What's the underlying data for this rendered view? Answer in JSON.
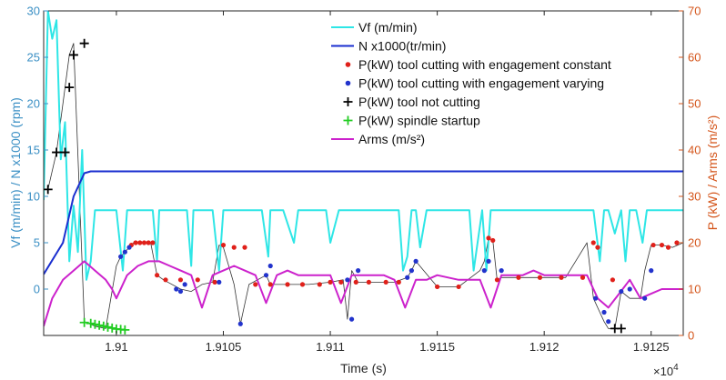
{
  "chart_data": {
    "type": "line",
    "xlabel": "Time (s)",
    "x_exponent_label": "×10",
    "x_exponent_power": "4",
    "x_ticks": [
      "1.91",
      "1.9105",
      "1.911",
      "1.9115",
      "1.912",
      "1.9125"
    ],
    "x_tick_values": [
      1.91,
      1.9105,
      1.911,
      1.9115,
      1.912,
      1.9125
    ],
    "xlim": [
      1.90966,
      1.91265
    ],
    "ylabel_left": "Vf (m/min) / N x1000 (rpm)",
    "ylim_left": [
      -5,
      30
    ],
    "yticks_left": [
      "0",
      "5",
      "10",
      "15",
      "20",
      "25",
      "30"
    ],
    "ytick_values_left": [
      0,
      5,
      10,
      15,
      20,
      25,
      30
    ],
    "ylabel_right": "P (kW) / Arms (m/s²)",
    "ylim_right": [
      0,
      70
    ],
    "yticks_right": [
      "0",
      "10",
      "20",
      "30",
      "40",
      "50",
      "60",
      "70"
    ],
    "ytick_values_right": [
      0,
      10,
      20,
      30,
      40,
      50,
      60,
      70
    ],
    "left_axis_color": "#3a8fc4",
    "right_axis_color": "#d4551b",
    "legend_position": "top-right",
    "grid": false,
    "series": [
      {
        "name": "Vf (m/min)",
        "axis": "left",
        "style": "line",
        "color": "#2ee6e6",
        "x": [
          1.90966,
          1.90968,
          1.9097,
          1.90972,
          1.90974,
          1.90976,
          1.90978,
          1.9098,
          1.90982,
          1.90984,
          1.90986,
          1.90988,
          1.9099,
          1.90992,
          1.90995,
          1.91,
          1.91003,
          1.91005,
          1.91007,
          1.91011,
          1.91017,
          1.91019,
          1.9102,
          1.91025,
          1.91033,
          1.91035,
          1.91036,
          1.9104,
          1.91045,
          1.91048,
          1.9105,
          1.91058,
          1.91068,
          1.91071,
          1.91072,
          1.91074,
          1.91078,
          1.91083,
          1.91085,
          1.91086,
          1.9109,
          1.91098,
          1.911,
          1.91104,
          1.91106,
          1.91108,
          1.91111,
          1.91132,
          1.91134,
          1.91136,
          1.91138,
          1.9114,
          1.91142,
          1.91145,
          1.91165,
          1.91167,
          1.91171,
          1.91173,
          1.91175,
          1.9118,
          1.91223,
          1.91226,
          1.91228,
          1.9123,
          1.91233,
          1.91236,
          1.91238,
          1.9124,
          1.91243,
          1.91246,
          1.91248,
          1.91252,
          1.91265
        ],
        "y": [
          9.6,
          30,
          27,
          29,
          14,
          18,
          3,
          9,
          4,
          15,
          1,
          3,
          8.5,
          8.5,
          8.5,
          8.5,
          2,
          8.5,
          8.5,
          8.5,
          8.5,
          3,
          8.5,
          8.5,
          8.5,
          2.5,
          8.5,
          8.5,
          8.5,
          2,
          8.5,
          8.5,
          8.5,
          3.5,
          8.5,
          8.5,
          8.5,
          5,
          8.5,
          8.5,
          8.5,
          8.5,
          5,
          8.5,
          8.5,
          8.5,
          8.5,
          8.5,
          2,
          3.5,
          8.5,
          8.5,
          4.5,
          8.5,
          8.5,
          2,
          8.5,
          2,
          8.5,
          8.5,
          8.5,
          3,
          8.5,
          8.5,
          6,
          8.5,
          3,
          8.5,
          8.5,
          5,
          8.5,
          8.5,
          8.5
        ]
      },
      {
        "name": "N x1000(tr/min)",
        "axis": "left",
        "style": "line",
        "color": "#1a2ecf",
        "x": [
          1.90966,
          1.90975,
          1.9098,
          1.90985,
          1.90988,
          1.91265
        ],
        "y": [
          1.6,
          5,
          10,
          12.5,
          12.7,
          12.7
        ]
      },
      {
        "name": "P(kW) tool cutting with engagement constant",
        "axis": "right",
        "style": "dots",
        "color": "#e0201a",
        "x": [
          1.91007,
          1.91009,
          1.91011,
          1.91013,
          1.91015,
          1.91017,
          1.91019,
          1.91023,
          1.9103,
          1.91038,
          1.91046,
          1.9105,
          1.91055,
          1.9106,
          1.91065,
          1.91072,
          1.9108,
          1.91087,
          1.91095,
          1.911,
          1.91105,
          1.91112,
          1.91118,
          1.91126,
          1.91132,
          1.9115,
          1.9116,
          1.91174,
          1.91176,
          1.91178,
          1.91188,
          1.91198,
          1.91208,
          1.91218,
          1.91223,
          1.91225,
          1.91232,
          1.91251,
          1.91255,
          1.91258,
          1.91262
        ],
        "y": [
          19.5,
          20,
          20,
          20,
          20,
          20,
          13,
          12,
          12,
          12,
          11.5,
          19.5,
          19,
          19,
          11,
          11,
          11,
          11,
          11,
          11.5,
          11.5,
          11.5,
          11.5,
          11.5,
          11.5,
          10.5,
          10.5,
          21,
          20.5,
          12,
          12.5,
          12.5,
          12.5,
          12.5,
          20,
          19,
          12,
          19.5,
          19.5,
          19,
          20
        ]
      },
      {
        "name": "P(kW) tool cutting with engagement varying",
        "axis": "right",
        "style": "dots",
        "color": "#2233cc",
        "x": [
          1.91002,
          1.91004,
          1.91006,
          1.91028,
          1.9103,
          1.91032,
          1.91048,
          1.91058,
          1.9107,
          1.91072,
          1.91108,
          1.9111,
          1.91113,
          1.91136,
          1.91138,
          1.9114,
          1.91172,
          1.91174,
          1.9118,
          1.91224,
          1.91228,
          1.9123,
          1.91236,
          1.9124,
          1.91247,
          1.9125
        ],
        "y": [
          17,
          18,
          19,
          10,
          9.5,
          11,
          11.5,
          2.5,
          13,
          15,
          12,
          3.5,
          14,
          12.5,
          14,
          16,
          14,
          16,
          14,
          8,
          5,
          3,
          9.5,
          10,
          8,
          14
        ]
      },
      {
        "name": "P(kW) tool not cutting",
        "axis": "right",
        "style": "plus",
        "color": "#000000",
        "x": [
          1.90968,
          1.90972,
          1.90976,
          1.90978,
          1.9098,
          1.90985,
          1.91233,
          1.91236
        ],
        "y": [
          31.5,
          39.5,
          39.5,
          53.5,
          60.5,
          63,
          1.5,
          1.5
        ]
      },
      {
        "name": "P(kW) spindle startup",
        "axis": "right",
        "style": "plus",
        "color": "#22cc22",
        "x": [
          1.90985,
          1.90988,
          1.9099,
          1.90992,
          1.90994,
          1.90996,
          1.90998,
          1.91,
          1.91002,
          1.91004
        ],
        "y": [
          2.8,
          2.6,
          2.4,
          2.2,
          2,
          1.8,
          1.6,
          1.4,
          1.3,
          1.2
        ]
      },
      {
        "name": "Arms (m/s²)",
        "axis": "right",
        "style": "line",
        "color": "#cc22cc",
        "x": [
          1.90966,
          1.9097,
          1.90975,
          1.9098,
          1.90985,
          1.9099,
          1.90995,
          1.90998,
          1.91,
          1.91005,
          1.9101,
          1.91015,
          1.9102,
          1.91025,
          1.9103,
          1.91035,
          1.9104,
          1.91045,
          1.9105,
          1.91055,
          1.9106,
          1.91065,
          1.9107,
          1.91075,
          1.9108,
          1.91085,
          1.9109,
          1.91095,
          1.911,
          1.91105,
          1.9111,
          1.91115,
          1.9112,
          1.91125,
          1.9113,
          1.91135,
          1.9114,
          1.91145,
          1.9115,
          1.9116,
          1.9117,
          1.91175,
          1.9118,
          1.91185,
          1.9119,
          1.91195,
          1.912,
          1.91205,
          1.9121,
          1.91215,
          1.9122,
          1.91225,
          1.9123,
          1.91235,
          1.9124,
          1.91245,
          1.9125,
          1.91255,
          1.9126,
          1.91265
        ],
        "y": [
          2,
          8,
          12,
          14,
          16,
          14,
          12,
          10,
          8,
          13,
          15,
          16,
          16,
          15,
          14,
          13,
          6,
          13,
          14,
          15,
          14,
          13,
          7,
          13,
          14,
          13,
          13,
          13,
          13,
          7,
          13,
          13,
          13,
          13,
          12,
          6,
          12,
          12,
          13,
          12,
          12,
          6,
          13,
          13,
          13,
          14,
          13,
          13,
          13,
          13,
          13,
          8,
          6,
          9,
          12,
          8,
          9,
          10,
          10,
          10
        ]
      },
      {
        "name": "",
        "axis": "right",
        "style": "line",
        "color": "#333333",
        "legend": false,
        "x": [
          1.90968,
          1.90972,
          1.90976,
          1.90978,
          1.9098,
          1.90985,
          1.9099,
          1.90995,
          1.91,
          1.91002,
          1.91004,
          1.91006,
          1.91008,
          1.91012,
          1.91016,
          1.91019,
          1.91022,
          1.9103,
          1.91035,
          1.9104,
          1.91045,
          1.91048,
          1.9105,
          1.91055,
          1.91058,
          1.91062,
          1.9107,
          1.91072,
          1.9108,
          1.9109,
          1.911,
          1.91106,
          1.91108,
          1.9111,
          1.91113,
          1.9112,
          1.9113,
          1.91136,
          1.91138,
          1.9114,
          1.9115,
          1.9116,
          1.9117,
          1.91172,
          1.91174,
          1.91176,
          1.91178,
          1.9118,
          1.9119,
          1.912,
          1.9121,
          1.9122,
          1.91223,
          1.91226,
          1.91228,
          1.9123,
          1.91233,
          1.91236,
          1.9124,
          1.91245,
          1.91247,
          1.9125,
          1.91255,
          1.9126,
          1.91265
        ],
        "y": [
          31.5,
          39.5,
          53.5,
          60.5,
          63,
          3,
          2,
          1.5,
          15,
          17,
          18,
          19,
          20,
          20,
          20,
          13,
          12,
          10,
          9.5,
          11,
          11.5,
          19.5,
          19,
          11,
          2.5,
          11,
          13,
          11,
          11,
          11,
          11.5,
          12,
          3.5,
          14,
          11.5,
          11.5,
          11.5,
          12.5,
          14,
          16,
          10.5,
          10.5,
          14,
          16,
          21,
          20.5,
          12,
          12.5,
          12.5,
          12.5,
          12.5,
          20,
          8,
          5,
          3,
          1.5,
          1.5,
          9.5,
          8,
          8,
          14,
          19.5,
          19.5,
          19,
          20
        ]
      }
    ]
  }
}
